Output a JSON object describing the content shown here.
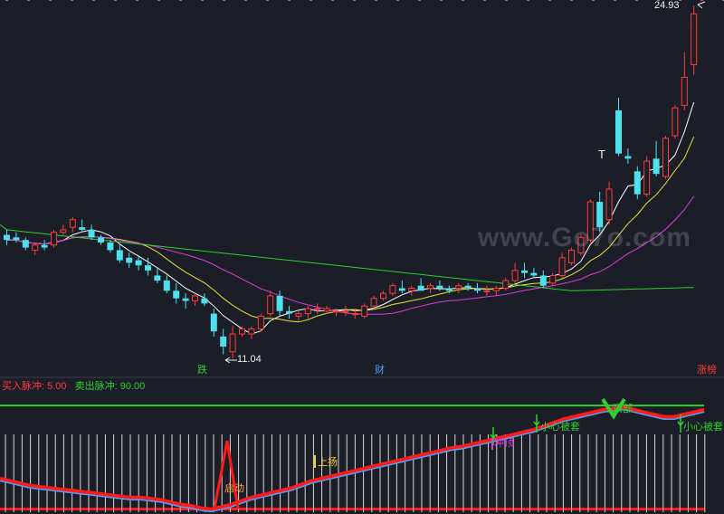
{
  "price_high_label": "24.93",
  "price_low_label": "11.04",
  "markers": {
    "die": "跌",
    "cai": "财",
    "zhangbang": "涨榜",
    "t_mark": "T"
  },
  "indicator": {
    "buy_label": "买入脉冲: 5.00",
    "sell_label": "卖出脉冲: 90.00",
    "buy_pulse": 5.0,
    "sell_pulse": 90.0,
    "signals": {
      "qidong": "启动",
      "shangyang": "上扬",
      "chongding": "冲顶",
      "dingbu": "顶部",
      "xiaoxin1": "小心被套",
      "xiaoxin2": "小心被套"
    }
  },
  "watermark": "www.Go7o.com",
  "colors": {
    "background": "#1b1e27",
    "up_candle": "#ff3b3b",
    "down_candle": "#4fe0ee",
    "ma_white": "#ffffff",
    "ma_yellow": "#e8e03a",
    "ma_magenta": "#e03ae0",
    "ma_green": "#2ed12e",
    "indicator_red": "#ff1a1a",
    "indicator_blue": "#4aa3ff",
    "sell_line": "#2ed12e"
  },
  "chart_data": {
    "type": "candlestick",
    "price_extremes": {
      "high": 24.93,
      "low": 11.04
    },
    "candles": [
      [
        15.9,
        16.1,
        15.5,
        15.7
      ],
      [
        15.8,
        16.0,
        15.6,
        15.7
      ],
      [
        15.7,
        15.8,
        15.3,
        15.4
      ],
      [
        15.3,
        15.6,
        15.1,
        15.5
      ],
      [
        15.5,
        15.7,
        15.3,
        15.4
      ],
      [
        15.5,
        16.1,
        15.4,
        16.0
      ],
      [
        16.0,
        16.3,
        15.9,
        16.1
      ],
      [
        16.2,
        16.6,
        16.0,
        16.5
      ],
      [
        16.2,
        16.5,
        16.0,
        16.1
      ],
      [
        16.1,
        16.3,
        15.7,
        15.8
      ],
      [
        15.8,
        15.9,
        15.5,
        15.6
      ],
      [
        15.6,
        15.7,
        15.2,
        15.3
      ],
      [
        15.3,
        15.5,
        14.8,
        14.9
      ],
      [
        15.0,
        15.2,
        14.6,
        14.8
      ],
      [
        14.9,
        15.1,
        14.5,
        14.7
      ],
      [
        14.7,
        15.0,
        14.3,
        14.5
      ],
      [
        14.3,
        14.6,
        14.0,
        14.1
      ],
      [
        14.1,
        14.3,
        13.6,
        13.7
      ],
      [
        13.7,
        14.0,
        13.2,
        13.4
      ],
      [
        13.4,
        13.6,
        13.0,
        13.3
      ],
      [
        13.3,
        13.6,
        13.1,
        13.5
      ],
      [
        13.4,
        13.6,
        13.1,
        13.2
      ],
      [
        12.8,
        13.0,
        11.9,
        12.1
      ],
      [
        11.9,
        12.2,
        11.2,
        11.5
      ],
      [
        11.3,
        12.3,
        11.04,
        12.0
      ],
      [
        12.0,
        12.3,
        11.9,
        12.2
      ],
      [
        12.0,
        12.3,
        11.8,
        12.2
      ],
      [
        12.2,
        12.8,
        12.1,
        12.7
      ],
      [
        12.8,
        13.7,
        12.7,
        13.5
      ],
      [
        13.5,
        13.7,
        12.7,
        12.9
      ],
      [
        12.9,
        13.1,
        12.6,
        12.8
      ],
      [
        12.7,
        12.9,
        12.5,
        12.8
      ],
      [
        12.8,
        13.1,
        12.6,
        13.0
      ],
      [
        13.0,
        13.2,
        12.8,
        13.0
      ],
      [
        12.9,
        13.1,
        12.8,
        13.0
      ],
      [
        12.9,
        13.0,
        12.7,
        12.9
      ],
      [
        12.9,
        13.1,
        12.7,
        12.9
      ],
      [
        12.8,
        13.0,
        12.6,
        12.8
      ],
      [
        12.7,
        13.2,
        12.6,
        13.1
      ],
      [
        13.1,
        13.5,
        13.0,
        13.4
      ],
      [
        13.4,
        13.7,
        13.3,
        13.6
      ],
      [
        13.6,
        14.0,
        13.5,
        13.9
      ],
      [
        13.8,
        14.1,
        13.6,
        13.7
      ],
      [
        13.7,
        13.9,
        13.5,
        13.8
      ],
      [
        13.9,
        14.2,
        13.7,
        13.7
      ],
      [
        13.8,
        14.0,
        13.6,
        13.9
      ],
      [
        13.9,
        14.1,
        13.7,
        13.8
      ],
      [
        13.8,
        13.9,
        13.6,
        13.7
      ],
      [
        13.8,
        14.0,
        13.6,
        13.9
      ],
      [
        13.9,
        14.0,
        13.7,
        13.8
      ],
      [
        13.8,
        14.0,
        13.6,
        13.7
      ],
      [
        13.7,
        13.9,
        13.5,
        13.7
      ],
      [
        13.7,
        13.9,
        13.5,
        13.8
      ],
      [
        13.8,
        14.2,
        13.7,
        14.1
      ],
      [
        14.1,
        14.8,
        14.0,
        14.5
      ],
      [
        14.5,
        14.8,
        14.2,
        14.4
      ],
      [
        14.4,
        14.6,
        14.2,
        14.3
      ],
      [
        14.3,
        14.5,
        13.8,
        13.9
      ],
      [
        14.0,
        14.4,
        13.9,
        14.3
      ],
      [
        14.3,
        15.2,
        14.2,
        15.0
      ],
      [
        14.8,
        15.4,
        14.7,
        15.3
      ],
      [
        15.2,
        15.9,
        15.1,
        15.8
      ],
      [
        15.7,
        17.3,
        15.6,
        17.2
      ],
      [
        17.2,
        17.6,
        16.0,
        16.2
      ],
      [
        16.5,
        18.0,
        16.3,
        17.7
      ],
      [
        20.8,
        21.3,
        19.0,
        19.1
      ],
      [
        19.0,
        19.3,
        18.7,
        18.9
      ],
      [
        18.4,
        18.6,
        17.3,
        17.5
      ],
      [
        17.5,
        19.0,
        17.4,
        18.8
      ],
      [
        18.9,
        19.6,
        18.2,
        18.3
      ],
      [
        18.2,
        19.8,
        18.1,
        19.7
      ],
      [
        19.8,
        21.0,
        19.7,
        20.9
      ],
      [
        21.0,
        23.1,
        20.8,
        22.1
      ],
      [
        22.6,
        24.93,
        22.2,
        24.6
      ]
    ]
  }
}
